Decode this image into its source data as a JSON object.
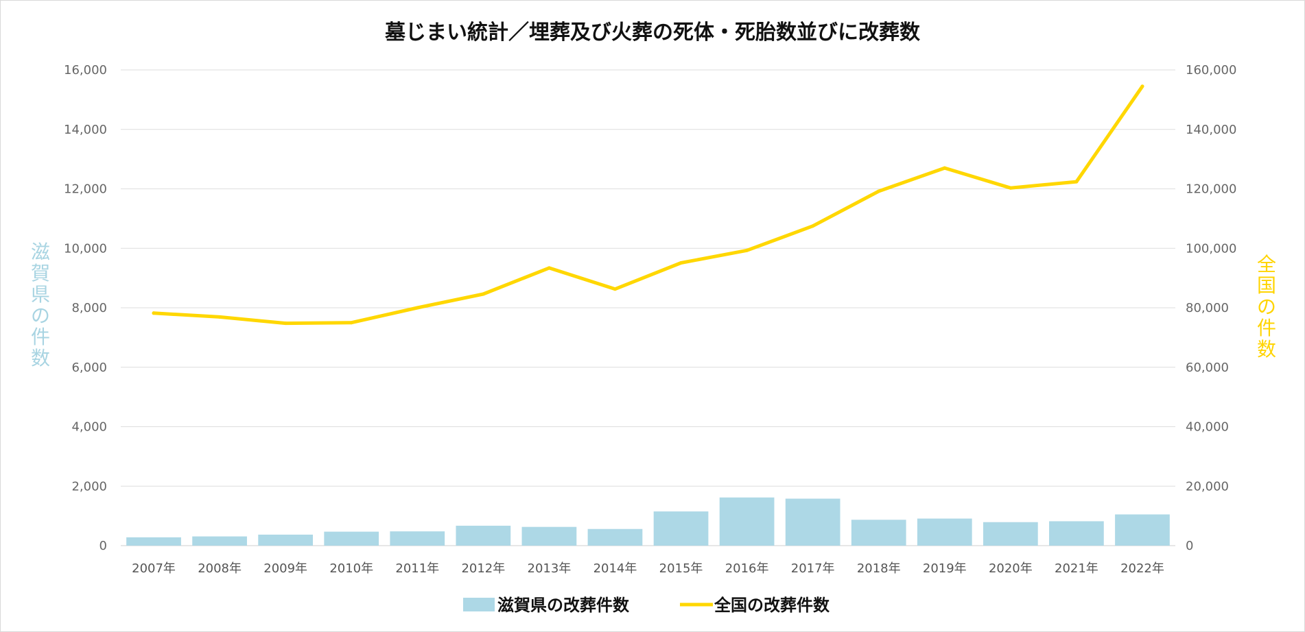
{
  "chart_data": {
    "type": "bar+line",
    "title": "墓じまい統計／埋葬及び火葬の死体・死胎数並びに改葬数",
    "categories": [
      "2007年",
      "2008年",
      "2009年",
      "2010年",
      "2011年",
      "2012年",
      "2013年",
      "2014年",
      "2015年",
      "2016年",
      "2017年",
      "2018年",
      "2019年",
      "2020年",
      "2021年",
      "2022年"
    ],
    "y_left": {
      "label": "滋賀県の件数",
      "range": [
        0,
        16000
      ],
      "ticks": [
        "0",
        "2,000",
        "4,000",
        "6,000",
        "8,000",
        "10,000",
        "12,000",
        "14,000",
        "16,000"
      ],
      "color": "#a8d4e2"
    },
    "y_right": {
      "label": "全国の件数",
      "range": [
        0,
        160000
      ],
      "ticks": [
        "0",
        "20,000",
        "40,000",
        "60,000",
        "80,000",
        "100,000",
        "120,000",
        "140,000",
        "160,000"
      ],
      "color": "#ffd400"
    },
    "series": [
      {
        "name": "滋賀県の改葬件数",
        "type": "bar",
        "axis": "left",
        "color": "#add8e6",
        "values": [
          280,
          310,
          370,
          470,
          480,
          670,
          630,
          560,
          1150,
          1620,
          1580,
          870,
          910,
          790,
          820,
          1050
        ]
      },
      {
        "name": "全国の改葬件数",
        "type": "line",
        "axis": "right",
        "color": "#ffd700",
        "values": [
          78200,
          76900,
          74800,
          75000,
          80000,
          84600,
          93400,
          86300,
          95100,
          99300,
          107500,
          119200,
          127000,
          120300,
          122400,
          154500
        ]
      }
    ],
    "grid": true,
    "legend_position": "bottom"
  }
}
